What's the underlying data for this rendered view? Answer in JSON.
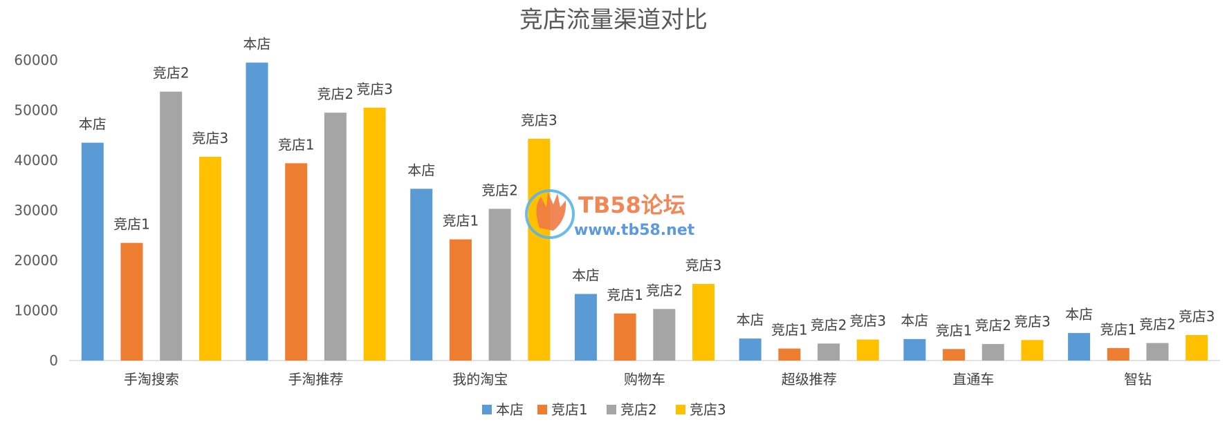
{
  "chart_data": {
    "type": "bar",
    "title": "竞店流量渠道对比",
    "categories": [
      "手淘搜索",
      "手淘推荐",
      "我的淘宝",
      "购物车",
      "超级推荐",
      "直通车",
      "智钻"
    ],
    "series": [
      {
        "name": "本店",
        "color": "#5b9bd5",
        "values": [
          43500,
          59500,
          34300,
          13300,
          4400,
          4300,
          5500
        ]
      },
      {
        "name": "竞店1",
        "color": "#ed7d31",
        "values": [
          23500,
          39400,
          24200,
          9400,
          2400,
          2300,
          2500
        ]
      },
      {
        "name": "竞店2",
        "color": "#a5a5a5",
        "values": [
          53700,
          49500,
          30300,
          10300,
          3400,
          3300,
          3500
        ]
      },
      {
        "name": "竞店3",
        "color": "#ffc000",
        "values": [
          40700,
          50500,
          44300,
          15300,
          4200,
          4100,
          5100
        ]
      }
    ],
    "ylim": [
      0,
      60000
    ],
    "yticks": [
      "0",
      "10000",
      "20000",
      "30000",
      "40000",
      "50000",
      "60000"
    ],
    "grid": false,
    "legend_position": "bottom"
  },
  "watermark": {
    "title": "TB58论坛",
    "url": "www.tb58.net"
  }
}
